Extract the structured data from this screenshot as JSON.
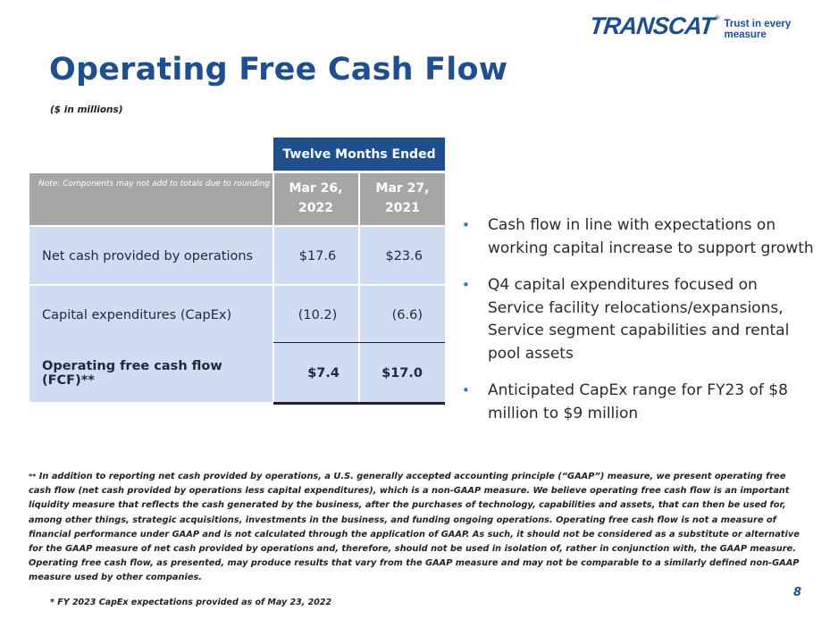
{
  "logo": {
    "name": "TRANSCAT",
    "reg": "®",
    "tagline": "Trust in every measure"
  },
  "title": "Operating Free Cash Flow",
  "subtitle": "($ in millions)",
  "table": {
    "header": "Twelve Months Ended",
    "note": "Note: Components may not add to totals due to rounding",
    "columns": [
      {
        "line1": "Mar 26,",
        "line2": "2022"
      },
      {
        "line1": "Mar 27,",
        "line2": "2021"
      }
    ],
    "rows": [
      {
        "label": "Net cash provided by operations",
        "values": [
          "$17.6",
          "$23.6"
        ]
      },
      {
        "label": "Capital expenditures (CapEx)",
        "values": [
          "(10.2)",
          "(6.6)"
        ]
      },
      {
        "label": "Operating free cash flow (FCF)**",
        "values": [
          "$7.4",
          "$17.0"
        ]
      }
    ]
  },
  "bullets": [
    "Cash flow in line with expectations on working capital increase to support growth",
    "Q4 capital expenditures focused on Service facility relocations/expansions, Service segment capabilities and rental pool assets",
    "Anticipated CapEx range for FY23 of $8 million to $9 million"
  ],
  "footnote": {
    "marker": "**",
    "text": " In addition to reporting net cash provided by operations, a U.S. generally accepted accounting principle (“GAAP”) measure, we present operating free cash flow (net cash provided by operations less capital expenditures), which is a non-GAAP measure. We believe operating free cash flow is an important liquidity measure that reflects the cash generated by the business, after the purchases of technology, capabilities and assets, that can then be used for, among other things, strategic acquisitions, investments in the business, and funding ongoing operations. Operating free cash flow is not a measure of financial performance under GAAP and is not calculated through the application of GAAP. As such, it should not be considered as a substitute or alternative for the GAAP measure of net cash provided by operations and, therefore, should not be used in isolation of, rather in conjunction with, the GAAP measure. Operating free cash flow, as presented, may produce results that vary from the GAAP measure and may not be comparable to a similarly defined non-GAAP measure used by other companies."
  },
  "footnote2": "* FY 2023 CapEx expectations provided as of May 23, 2022",
  "page_number": "8",
  "colors": {
    "brand_blue": "#1f4f8f",
    "header_gray": "#a6a6a6",
    "row_fill": "#cfdcf1",
    "bullet": "#2e75c9"
  }
}
